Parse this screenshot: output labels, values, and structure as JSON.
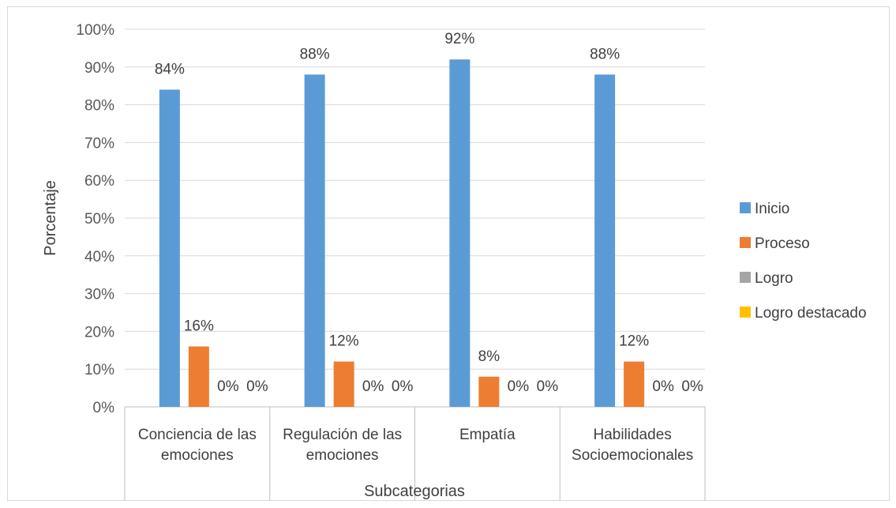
{
  "chart_data": {
    "type": "bar",
    "categories": [
      [
        "Conciencia de las",
        "emociones"
      ],
      [
        "Regulación de las",
        "emociones"
      ],
      [
        "Empatía"
      ],
      [
        "Habilidades",
        "Socioemocionales"
      ]
    ],
    "series": [
      {
        "name": "Inicio",
        "color": "#5b9bd5",
        "values": [
          84,
          88,
          92,
          88
        ]
      },
      {
        "name": "Proceso",
        "color": "#ed7d31",
        "values": [
          16,
          12,
          8,
          12
        ]
      },
      {
        "name": "Logro",
        "color": "#a5a5a5",
        "values": [
          0,
          0,
          0,
          0
        ]
      },
      {
        "name": "Logro destacado",
        "color": "#ffc000",
        "values": [
          0,
          0,
          0,
          0
        ]
      }
    ],
    "value_suffix": "%",
    "ylim": [
      0,
      100
    ],
    "yticks": [
      "0%",
      "10%",
      "20%",
      "30%",
      "40%",
      "50%",
      "60%",
      "70%",
      "80%",
      "90%",
      "100%"
    ],
    "xlabel": "Subcategorias",
    "ylabel": "Porcentaje",
    "grid": true,
    "legend_position": "right"
  }
}
